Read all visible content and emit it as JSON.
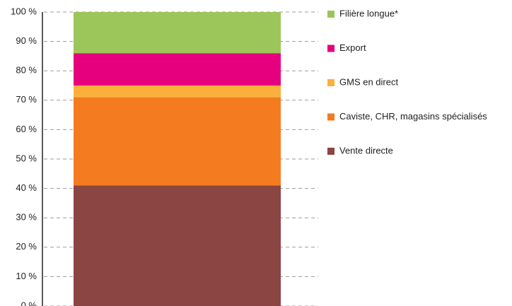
{
  "chart_data": {
    "type": "stacked_bar",
    "categories": [
      null
    ],
    "series": [
      {
        "name": "Vente directe",
        "color": "#8b4543",
        "values": [
          41
        ]
      },
      {
        "name": "Caviste, CHR, magasins spécialisés",
        "color": "#f47b20",
        "values": [
          30
        ]
      },
      {
        "name": "GMS en direct",
        "color": "#fbb03b",
        "values": [
          4
        ]
      },
      {
        "name": "Export",
        "color": "#e6007e",
        "values": [
          11
        ]
      },
      {
        "name": "Filière longue*",
        "color": "#9dc65a",
        "values": [
          14
        ]
      }
    ],
    "ylim": [
      0,
      100
    ],
    "yticks": [
      {
        "value": 0,
        "label": "0 %"
      },
      {
        "value": 10,
        "label": "10 %"
      },
      {
        "value": 20,
        "label": "20 %"
      },
      {
        "value": 30,
        "label": "30 %"
      },
      {
        "value": 40,
        "label": "40 %"
      },
      {
        "value": 50,
        "label": "50 %"
      },
      {
        "value": 60,
        "label": "60 %"
      },
      {
        "value": 70,
        "label": "70 %"
      },
      {
        "value": 80,
        "label": "80 %"
      },
      {
        "value": 90,
        "label": "90 %"
      },
      {
        "value": 100,
        "label": "100 %"
      }
    ],
    "grid": true,
    "legend": "right"
  }
}
